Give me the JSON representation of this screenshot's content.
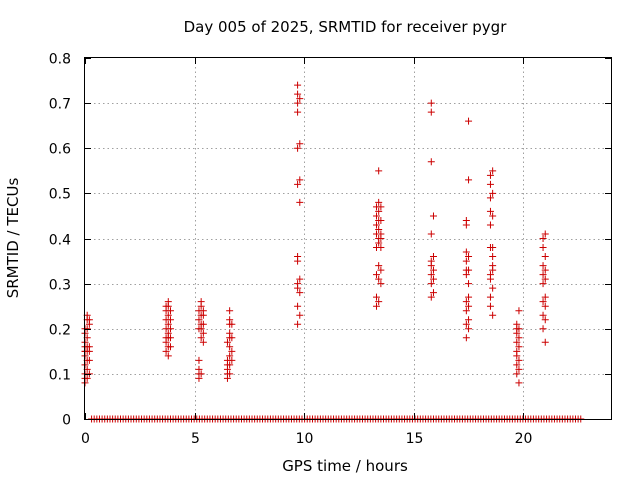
{
  "chart_data": {
    "type": "scatter",
    "title": "Day 005 of 2025, SRMTID for receiver pygr",
    "xlabel": "GPS time / hours",
    "ylabel": "SRMTID / TECUs",
    "xlim": [
      0,
      24
    ],
    "ylim": [
      0,
      0.8
    ],
    "xticks": [
      0,
      5,
      10,
      15,
      20
    ],
    "yticks": [
      0,
      0.1,
      0.2,
      0.3,
      0.4,
      0.5,
      0.6,
      0.7,
      0.8
    ],
    "xtick_labels": [
      "0",
      "5",
      "10",
      "15",
      "20"
    ],
    "ytick_labels": [
      "0",
      "0.1",
      "0.2",
      "0.3",
      "0.4",
      "0.5",
      "0.6",
      "0.7",
      "0.8"
    ],
    "grid": true,
    "marker": "+",
    "series_color": "#cc0000",
    "clusters": [
      {
        "x": 0.0,
        "values": [
          0.08,
          0.09,
          0.1,
          0.12,
          0.14,
          0.15,
          0.15,
          0.16,
          0.17,
          0.19,
          0.2
        ]
      },
      {
        "x": 0.1,
        "values": [
          0.09,
          0.11,
          0.13,
          0.15,
          0.16,
          0.18,
          0.2,
          0.22,
          0.23
        ]
      },
      {
        "x": 0.2,
        "values": [
          0.1,
          0.13,
          0.15,
          0.16,
          0.21,
          0.22
        ]
      },
      {
        "x": 3.7,
        "values": [
          0.15,
          0.17,
          0.18,
          0.2,
          0.22,
          0.24,
          0.25
        ]
      },
      {
        "x": 3.8,
        "values": [
          0.14,
          0.16,
          0.18,
          0.19,
          0.21,
          0.23,
          0.25,
          0.26
        ]
      },
      {
        "x": 3.9,
        "values": [
          0.16,
          0.18,
          0.2,
          0.22,
          0.24
        ]
      },
      {
        "x": 5.2,
        "values": [
          0.09,
          0.1,
          0.11,
          0.13,
          0.2,
          0.22,
          0.24
        ]
      },
      {
        "x": 5.3,
        "values": [
          0.1,
          0.18,
          0.2,
          0.21,
          0.23,
          0.25,
          0.26
        ]
      },
      {
        "x": 5.4,
        "values": [
          0.17,
          0.19,
          0.21,
          0.23,
          0.24
        ]
      },
      {
        "x": 6.5,
        "values": [
          0.09,
          0.1,
          0.11,
          0.12,
          0.13,
          0.17
        ]
      },
      {
        "x": 6.6,
        "values": [
          0.1,
          0.12,
          0.14,
          0.16,
          0.18,
          0.19,
          0.21,
          0.22,
          0.24
        ]
      },
      {
        "x": 6.7,
        "values": [
          0.13,
          0.15,
          0.18,
          0.21
        ]
      },
      {
        "x": 9.7,
        "values": [
          0.21,
          0.25,
          0.29,
          0.3,
          0.35,
          0.36,
          0.52,
          0.6,
          0.68,
          0.7,
          0.72,
          0.74
        ]
      },
      {
        "x": 9.8,
        "values": [
          0.23,
          0.28,
          0.31,
          0.48,
          0.53,
          0.61,
          0.71
        ]
      },
      {
        "x": 13.3,
        "values": [
          0.25,
          0.27,
          0.32,
          0.38,
          0.41,
          0.43,
          0.45,
          0.47
        ]
      },
      {
        "x": 13.4,
        "values": [
          0.26,
          0.31,
          0.34,
          0.39,
          0.4,
          0.42,
          0.44,
          0.46,
          0.48,
          0.55
        ]
      },
      {
        "x": 13.5,
        "values": [
          0.3,
          0.33,
          0.38,
          0.4,
          0.41,
          0.44,
          0.47
        ]
      },
      {
        "x": 15.8,
        "values": [
          0.27,
          0.3,
          0.32,
          0.34,
          0.35,
          0.41,
          0.57,
          0.68,
          0.7
        ]
      },
      {
        "x": 15.9,
        "values": [
          0.28,
          0.31,
          0.33,
          0.36,
          0.45
        ]
      },
      {
        "x": 17.4,
        "values": [
          0.18,
          0.21,
          0.24,
          0.26,
          0.32,
          0.33,
          0.35,
          0.37,
          0.43,
          0.44
        ]
      },
      {
        "x": 17.5,
        "values": [
          0.2,
          0.22,
          0.25,
          0.27,
          0.3,
          0.33,
          0.36,
          0.53,
          0.66
        ]
      },
      {
        "x": 18.5,
        "values": [
          0.25,
          0.27,
          0.31,
          0.32,
          0.38,
          0.43,
          0.46,
          0.49,
          0.52,
          0.54
        ]
      },
      {
        "x": 18.6,
        "values": [
          0.23,
          0.29,
          0.33,
          0.34,
          0.36,
          0.38,
          0.45,
          0.5,
          0.55
        ]
      },
      {
        "x": 19.7,
        "values": [
          0.1,
          0.12,
          0.14,
          0.15,
          0.17,
          0.19,
          0.2,
          0.21
        ]
      },
      {
        "x": 19.8,
        "values": [
          0.08,
          0.11,
          0.13,
          0.16,
          0.18,
          0.2,
          0.24
        ]
      },
      {
        "x": 20.9,
        "values": [
          0.2,
          0.23,
          0.26,
          0.3,
          0.32,
          0.34,
          0.38,
          0.4
        ]
      },
      {
        "x": 21.0,
        "values": [
          0.17,
          0.22,
          0.25,
          0.27,
          0.31,
          0.33,
          0.36,
          0.41
        ]
      }
    ],
    "zero_baseline": {
      "x_start": 0.3,
      "x_end": 22.7,
      "step": 0.12,
      "y": 0.0
    }
  }
}
